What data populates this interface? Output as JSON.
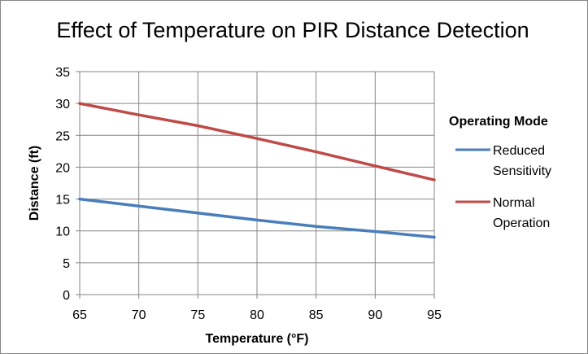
{
  "chart_data": {
    "type": "line",
    "title": "Effect of Temperature on PIR Distance Detection",
    "xlabel": "Temperature (°F)",
    "ylabel": "Distance (ft)",
    "xlim": [
      65,
      95
    ],
    "ylim": [
      0,
      35
    ],
    "x_ticks": [
      65,
      70,
      75,
      80,
      85,
      90,
      95
    ],
    "y_ticks": [
      0,
      5,
      10,
      15,
      20,
      25,
      30,
      35
    ],
    "grid": true,
    "legend": {
      "title": "Operating Mode",
      "position": "right"
    },
    "series": [
      {
        "name": "Reduced Sensitivity",
        "name_lines": [
          "Reduced",
          "Sensitivity"
        ],
        "color": "#4a7ebb",
        "x": [
          65,
          70,
          75,
          80,
          85,
          90,
          95
        ],
        "y": [
          15,
          13.9,
          12.8,
          11.7,
          10.7,
          9.9,
          9.0
        ]
      },
      {
        "name": "Normal Operation",
        "name_lines": [
          "Normal",
          "Operation"
        ],
        "color": "#be4b48",
        "x": [
          65,
          70,
          75,
          80,
          85,
          90,
          95
        ],
        "y": [
          30,
          28.2,
          26.5,
          24.5,
          22.4,
          20.2,
          18.0
        ]
      }
    ]
  }
}
